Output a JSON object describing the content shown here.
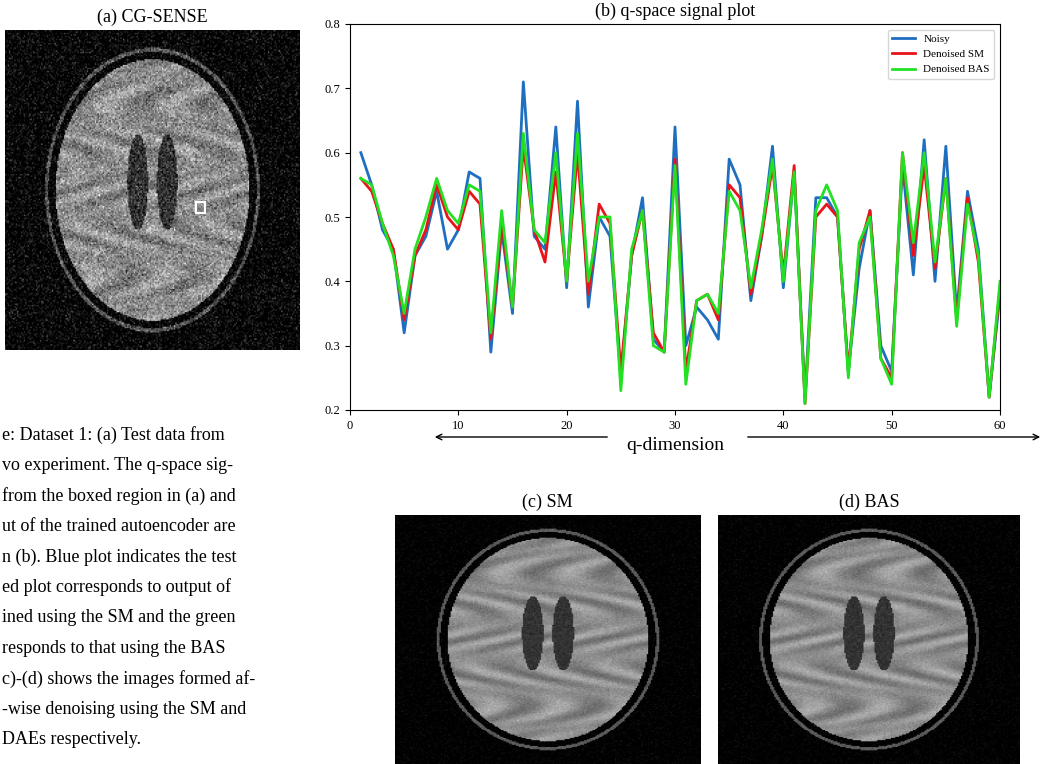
{
  "panels": {
    "a": "(a) CG-SENSE",
    "c": "(c) SM",
    "d": "(d) BAS"
  },
  "caption_lines": [
    "e: Dataset 1: (a) Test data from",
    "vo experiment. The q-space sig-",
    "from the boxed region in (a) and",
    "ut of the trained autoencoder are",
    "n (b). Blue plot indicates the test",
    "ed plot corresponds to output of",
    "ined using the SM and the green",
    "responds to that using the BAS",
    "c)-(d) shows the images formed af-",
    "-wise denoising using the SM and",
    "DAEs respectively."
  ],
  "chart_data": {
    "type": "line",
    "title": "(b) q-space signal plot",
    "x_label": "q-dimension",
    "x": [
      1,
      2,
      3,
      4,
      5,
      6,
      7,
      8,
      9,
      10,
      11,
      12,
      13,
      14,
      15,
      16,
      17,
      18,
      19,
      20,
      21,
      22,
      23,
      24,
      25,
      26,
      27,
      28,
      29,
      30,
      31,
      32,
      33,
      34,
      35,
      36,
      37,
      38,
      39,
      40,
      41,
      42,
      43,
      44,
      45,
      46,
      47,
      48,
      49,
      50,
      51,
      52,
      53,
      54,
      55,
      56,
      57,
      58,
      59,
      60
    ],
    "series": [
      {
        "name": "Noisy",
        "color": "#1f6fc0",
        "values": [
          0.6,
          0.55,
          0.48,
          0.45,
          0.32,
          0.44,
          0.47,
          0.54,
          0.45,
          0.48,
          0.57,
          0.56,
          0.29,
          0.48,
          0.35,
          0.71,
          0.47,
          0.45,
          0.64,
          0.39,
          0.68,
          0.36,
          0.5,
          0.47,
          0.25,
          0.44,
          0.53,
          0.31,
          0.29,
          0.64,
          0.3,
          0.36,
          0.34,
          0.31,
          0.59,
          0.55,
          0.37,
          0.47,
          0.61,
          0.39,
          0.57,
          0.22,
          0.53,
          0.53,
          0.5,
          0.26,
          0.42,
          0.51,
          0.3,
          0.26,
          0.58,
          0.41,
          0.62,
          0.4,
          0.61,
          0.35,
          0.54,
          0.45,
          0.22,
          0.38
        ]
      },
      {
        "name": "Denoised SM",
        "color": "#e8141a",
        "values": [
          0.56,
          0.54,
          0.49,
          0.45,
          0.34,
          0.44,
          0.48,
          0.55,
          0.5,
          0.48,
          0.54,
          0.52,
          0.31,
          0.49,
          0.36,
          0.61,
          0.48,
          0.43,
          0.57,
          0.4,
          0.6,
          0.38,
          0.52,
          0.49,
          0.26,
          0.44,
          0.51,
          0.32,
          0.29,
          0.59,
          0.26,
          0.37,
          0.38,
          0.34,
          0.55,
          0.53,
          0.38,
          0.47,
          0.58,
          0.41,
          0.58,
          0.21,
          0.5,
          0.52,
          0.5,
          0.26,
          0.45,
          0.51,
          0.28,
          0.25,
          0.6,
          0.44,
          0.58,
          0.42,
          0.56,
          0.34,
          0.53,
          0.43,
          0.22,
          0.39
        ]
      },
      {
        "name": "Denoised BAS",
        "color": "#22e022",
        "values": [
          0.56,
          0.55,
          0.49,
          0.44,
          0.35,
          0.45,
          0.5,
          0.56,
          0.51,
          0.49,
          0.55,
          0.54,
          0.32,
          0.51,
          0.36,
          0.63,
          0.48,
          0.46,
          0.6,
          0.4,
          0.63,
          0.4,
          0.5,
          0.5,
          0.23,
          0.45,
          0.51,
          0.3,
          0.29,
          0.58,
          0.24,
          0.37,
          0.38,
          0.35,
          0.54,
          0.51,
          0.39,
          0.48,
          0.59,
          0.4,
          0.57,
          0.21,
          0.51,
          0.55,
          0.51,
          0.25,
          0.46,
          0.5,
          0.28,
          0.24,
          0.6,
          0.46,
          0.6,
          0.43,
          0.56,
          0.33,
          0.52,
          0.44,
          0.22,
          0.4
        ]
      }
    ],
    "xlim": [
      0,
      60
    ],
    "xticks": [
      0,
      10,
      20,
      30,
      40,
      50,
      60
    ],
    "ylim": [
      0.2,
      0.8
    ],
    "yticks": [
      0.2,
      0.3,
      0.4,
      0.5,
      0.6,
      0.7,
      0.8
    ],
    "legend": "upper right",
    "grid": false
  }
}
